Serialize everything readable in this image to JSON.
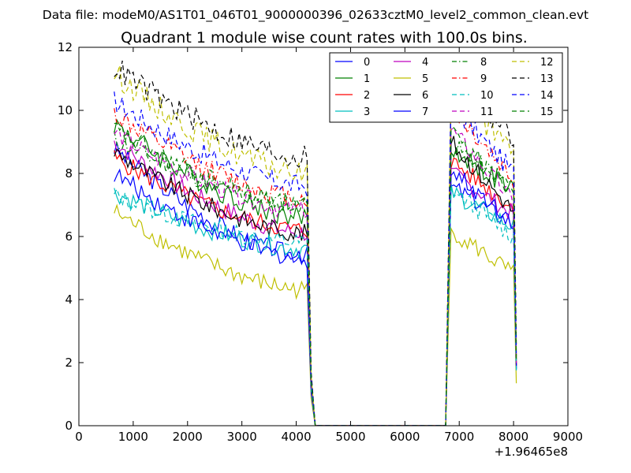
{
  "header": {
    "data_file_line": "Data file: modeM0/AS1T01_046T01_9000000396_02633cztM0_level2_common_clean.evt"
  },
  "chart_data": {
    "type": "line",
    "title": "Quadrant 1 module wise count rates with 100.0s bins.",
    "xlabel": "",
    "ylabel": "",
    "x_offset_label": "+1.96465e8",
    "xlim": [
      0,
      9000
    ],
    "ylim": [
      0,
      12
    ],
    "xticks": [
      0,
      1000,
      2000,
      3000,
      4000,
      5000,
      6000,
      7000,
      8000,
      9000
    ],
    "yticks": [
      0,
      2,
      4,
      6,
      8,
      10,
      12
    ],
    "xtick_labels": [
      "0",
      "1000",
      "2000",
      "3000",
      "4000",
      "5000",
      "6000",
      "7000",
      "8000",
      "9000"
    ],
    "ytick_labels": [
      "0",
      "2",
      "4",
      "6",
      "8",
      "10",
      "12"
    ],
    "grid": false,
    "legend_position": "top-right",
    "legend_columns": 4,
    "active_x_ranges": [
      [
        650,
        4250
      ],
      [
        6750,
        8050
      ]
    ],
    "gap_range": [
      4350,
      6750
    ],
    "series": [
      {
        "name": "0",
        "color": "#0000ff",
        "dash": "solid",
        "seg1_start": 8.8,
        "seg1_end": 5.4,
        "seg2_peak": 7.6,
        "seg2_end": 6.4,
        "noise": 0.3
      },
      {
        "name": "1",
        "color": "#008000",
        "dash": "solid",
        "seg1_start": 9.6,
        "seg1_end": 6.6,
        "seg2_peak": 8.8,
        "seg2_end": 7.4,
        "noise": 0.35
      },
      {
        "name": "2",
        "color": "#ff0000",
        "dash": "solid",
        "seg1_start": 8.5,
        "seg1_end": 6.2,
        "seg2_peak": 8.4,
        "seg2_end": 6.9,
        "noise": 0.3
      },
      {
        "name": "3",
        "color": "#00bfbf",
        "dash": "solid",
        "seg1_start": 7.4,
        "seg1_end": 5.6,
        "seg2_peak": 7.4,
        "seg2_end": 6.3,
        "noise": 0.3
      },
      {
        "name": "4",
        "color": "#bf00bf",
        "dash": "solid",
        "seg1_start": 9.0,
        "seg1_end": 6.1,
        "seg2_peak": 8.0,
        "seg2_end": 6.7,
        "noise": 0.3
      },
      {
        "name": "5",
        "color": "#bfbf00",
        "dash": "solid",
        "seg1_start": 6.8,
        "seg1_end": 4.3,
        "seg2_peak": 6.2,
        "seg2_end": 4.8,
        "noise": 0.3
      },
      {
        "name": "6",
        "color": "#000000",
        "dash": "solid",
        "seg1_start": 8.7,
        "seg1_end": 6.1,
        "seg2_peak": 9.0,
        "seg2_end": 6.8,
        "noise": 0.3
      },
      {
        "name": "7",
        "color": "#0000ff",
        "dash": "solid",
        "seg1_start": 8.0,
        "seg1_end": 5.3,
        "seg2_peak": 8.1,
        "seg2_end": 6.5,
        "noise": 0.3
      },
      {
        "name": "8",
        "color": "#008000",
        "dash": "dashdot",
        "seg1_start": 9.1,
        "seg1_end": 7.0,
        "seg2_peak": 8.9,
        "seg2_end": 7.6,
        "noise": 0.3
      },
      {
        "name": "9",
        "color": "#ff0000",
        "dash": "dashdot",
        "seg1_start": 9.9,
        "seg1_end": 7.2,
        "seg2_peak": 10.1,
        "seg2_end": 7.8,
        "noise": 0.35
      },
      {
        "name": "10",
        "color": "#00bfbf",
        "dash": "dashed",
        "seg1_start": 7.3,
        "seg1_end": 5.8,
        "seg2_peak": 7.5,
        "seg2_end": 6.0,
        "noise": 0.3
      },
      {
        "name": "11",
        "color": "#bf00bf",
        "dash": "dashed",
        "seg1_start": 9.3,
        "seg1_end": 6.8,
        "seg2_peak": 9.4,
        "seg2_end": 7.1,
        "noise": 0.3
      },
      {
        "name": "12",
        "color": "#bfbf00",
        "dash": "dashed",
        "seg1_start": 11.2,
        "seg1_end": 8.0,
        "seg2_peak": 10.8,
        "seg2_end": 8.6,
        "noise": 0.4
      },
      {
        "name": "13",
        "color": "#000000",
        "dash": "dashed",
        "seg1_start": 11.4,
        "seg1_end": 8.5,
        "seg2_peak": 11.1,
        "seg2_end": 9.1,
        "noise": 0.4
      },
      {
        "name": "14",
        "color": "#0000ff",
        "dash": "dashed",
        "seg1_start": 10.3,
        "seg1_end": 7.6,
        "seg2_peak": 10.2,
        "seg2_end": 8.0,
        "noise": 0.35
      },
      {
        "name": "15",
        "color": "#008000",
        "dash": "dashed",
        "seg1_start": 9.4,
        "seg1_end": 7.0,
        "seg2_peak": 9.2,
        "seg2_end": 7.5,
        "noise": 0.35
      }
    ]
  }
}
